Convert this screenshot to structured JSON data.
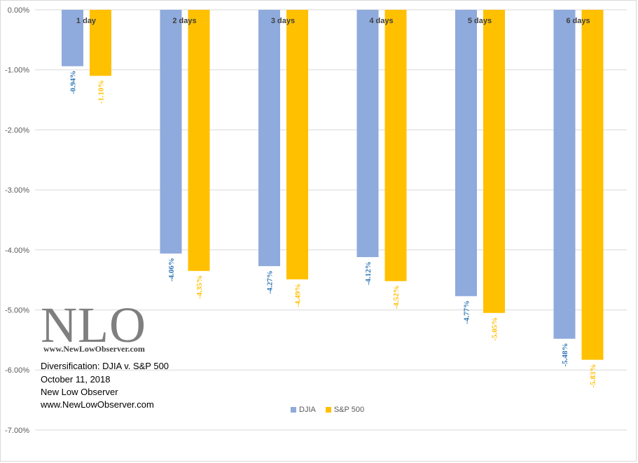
{
  "chart_data": {
    "type": "bar",
    "categories": [
      "1 day",
      "2 days",
      "3 days",
      "4 days",
      "5 days",
      "6 days"
    ],
    "series": [
      {
        "name": "DJIA",
        "color": "#8faadc",
        "label_color": "#2e75b6",
        "values": [
          -0.94,
          -4.06,
          -4.27,
          -4.12,
          -4.77,
          -5.48
        ],
        "labels": [
          "-0.94%",
          "-4.06%",
          "-4.27%",
          "-4.12%",
          "-4.77%",
          "-5.48%"
        ]
      },
      {
        "name": "S&P 500",
        "color": "#ffc000",
        "label_color": "#ffc000",
        "values": [
          -1.1,
          -4.35,
          -4.49,
          -4.52,
          -5.05,
          -5.83
        ],
        "labels": [
          "-1.10%",
          "-4.35%",
          "-4.49%",
          "-4.52%",
          "-5.05%",
          "-5.83%"
        ]
      }
    ],
    "y_ticks": [
      0,
      -1,
      -2,
      -3,
      -4,
      -5,
      -6,
      -7
    ],
    "y_tick_labels": [
      "0.00%",
      "-1.00%",
      "-2.00%",
      "-3.00%",
      "-4.00%",
      "-5.00%",
      "-6.00%",
      "-7.00%"
    ],
    "ylim": [
      -7,
      0
    ],
    "grid": true,
    "legend_position": "bottom-center"
  },
  "logo": {
    "text": "NLO",
    "url": "www.NewLowObserver.com"
  },
  "annotation": {
    "line1": "Diversification: DJIA v. S&P 500",
    "line2": "October 11, 2018",
    "line3": "New Low Observer",
    "line4": "www.NewLowObserver.com"
  },
  "legend": {
    "djia": "DJIA",
    "sp500": "S&P 500"
  }
}
